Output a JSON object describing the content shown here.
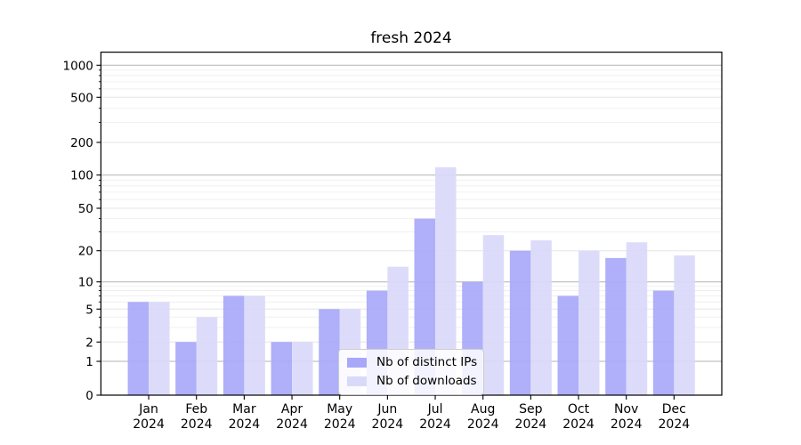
{
  "title": "fresh 2024",
  "chart_data": {
    "type": "bar",
    "title": "fresh 2024",
    "categories": [
      "Jan",
      "Feb",
      "Mar",
      "Apr",
      "May",
      "Jun",
      "Jul",
      "Aug",
      "Sep",
      "Oct",
      "Nov",
      "Dec"
    ],
    "x_tick_year": "2024",
    "series": [
      {
        "name": "Nb of distinct IPs",
        "color": "#a8a8fa",
        "values": [
          6,
          2,
          7,
          2,
          5,
          8,
          40,
          10,
          20,
          7,
          17,
          8
        ]
      },
      {
        "name": "Nb of downloads",
        "color": "#d9d9fa",
        "values": [
          6,
          4,
          7,
          2,
          5,
          14,
          118,
          28,
          25,
          20,
          24,
          18
        ]
      }
    ],
    "xlabel": "",
    "ylabel": "",
    "yscale": "symlog",
    "y_ticks": [
      0,
      1,
      2,
      5,
      10,
      20,
      50,
      100,
      200,
      500,
      1000
    ],
    "ylim": [
      0,
      1300
    ],
    "grid": true,
    "legend_position": "inside-bottom-center",
    "colors": {
      "major_gridline": "#b3b3b3",
      "mid_gridline": "#e6e6e6",
      "minor_gridline": "#f0f0f0",
      "axis": "#000000",
      "background": "#ffffff"
    }
  }
}
